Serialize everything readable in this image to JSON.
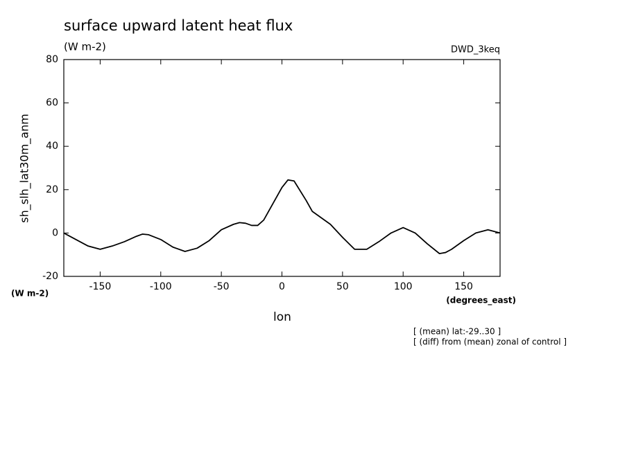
{
  "chart_data": {
    "type": "line",
    "title": "surface upward latent heat flux",
    "units": "(W m-2)",
    "dataset": "DWD_3keq",
    "y_label": "sh_slh_lat30m_anm",
    "y_units": "(W m-2)",
    "x_label": "lon",
    "x_units": "(degrees_east)",
    "notes": [
      "[ (mean) lat:-29..30 ]",
      "[ (diff) from (mean) zonal of control ]"
    ],
    "xlim": [
      -180,
      180
    ],
    "ylim": [
      -20,
      80
    ],
    "xticks": [
      -150,
      -100,
      -50,
      0,
      50,
      100,
      150
    ],
    "yticks": [
      -20,
      0,
      20,
      40,
      60,
      80
    ],
    "color": "#000000",
    "x": [
      -180,
      -170,
      -160,
      -150,
      -140,
      -130,
      -120,
      -115,
      -110,
      -100,
      -90,
      -80,
      -70,
      -60,
      -50,
      -40,
      -35,
      -30,
      -25,
      -20,
      -15,
      -10,
      0,
      5,
      10,
      20,
      25,
      30,
      40,
      50,
      60,
      70,
      80,
      90,
      100,
      110,
      120,
      130,
      135,
      140,
      150,
      160,
      170,
      180
    ],
    "values": [
      0,
      -3,
      -6,
      -7.5,
      -6,
      -4,
      -1.5,
      -0.5,
      -0.8,
      -3,
      -6.5,
      -8.5,
      -7,
      -3.5,
      1.5,
      4,
      4.8,
      4.5,
      3.5,
      3.5,
      6,
      11,
      21,
      24.5,
      24,
      15,
      10,
      8,
      4,
      -2,
      -7.5,
      -7.5,
      -4,
      0,
      2.5,
      0,
      -5,
      -9.5,
      -9,
      -7.5,
      -3.5,
      0,
      1.5,
      0
    ]
  }
}
